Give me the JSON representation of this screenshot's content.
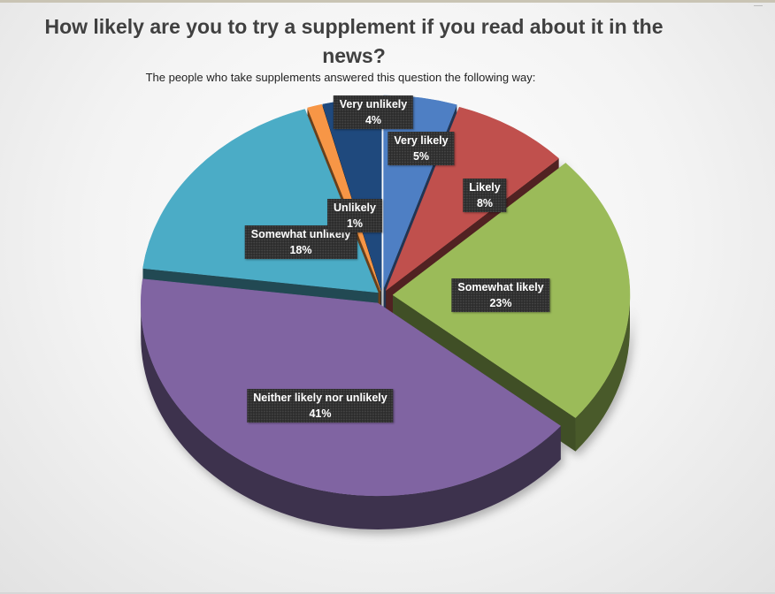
{
  "page": {
    "title": "How likely are you to try a supplement if you read about it in the news?",
    "subtitle": "The people who take supplements answered this question the following way:"
  },
  "chart_data": {
    "type": "pie",
    "title": "How likely are you to try a supplement if you read about it in the news?",
    "subtitle": "The people who take supplements answered this question the following way:",
    "style": "3d-exploded",
    "slices": [
      {
        "label": "Very likely",
        "value": 5,
        "value_label": "5%",
        "color": "#4e7fc4"
      },
      {
        "label": "Likely",
        "value": 8,
        "value_label": "8%",
        "color": "#c0504d"
      },
      {
        "label": "Somewhat likely",
        "value": 23,
        "value_label": "23%",
        "color": "#9bbb59"
      },
      {
        "label": "Neither likely nor unlikely",
        "value": 41,
        "value_label": "41%",
        "color": "#8064a2"
      },
      {
        "label": "Somewhat unlikely",
        "value": 18,
        "value_label": "18%",
        "color": "#4bacc6"
      },
      {
        "label": "Unlikely",
        "value": 1,
        "value_label": "1%",
        "color": "#f79646"
      },
      {
        "label": "Very unlikely",
        "value": 4,
        "value_label": "4%",
        "color": "#1f497d"
      }
    ]
  }
}
